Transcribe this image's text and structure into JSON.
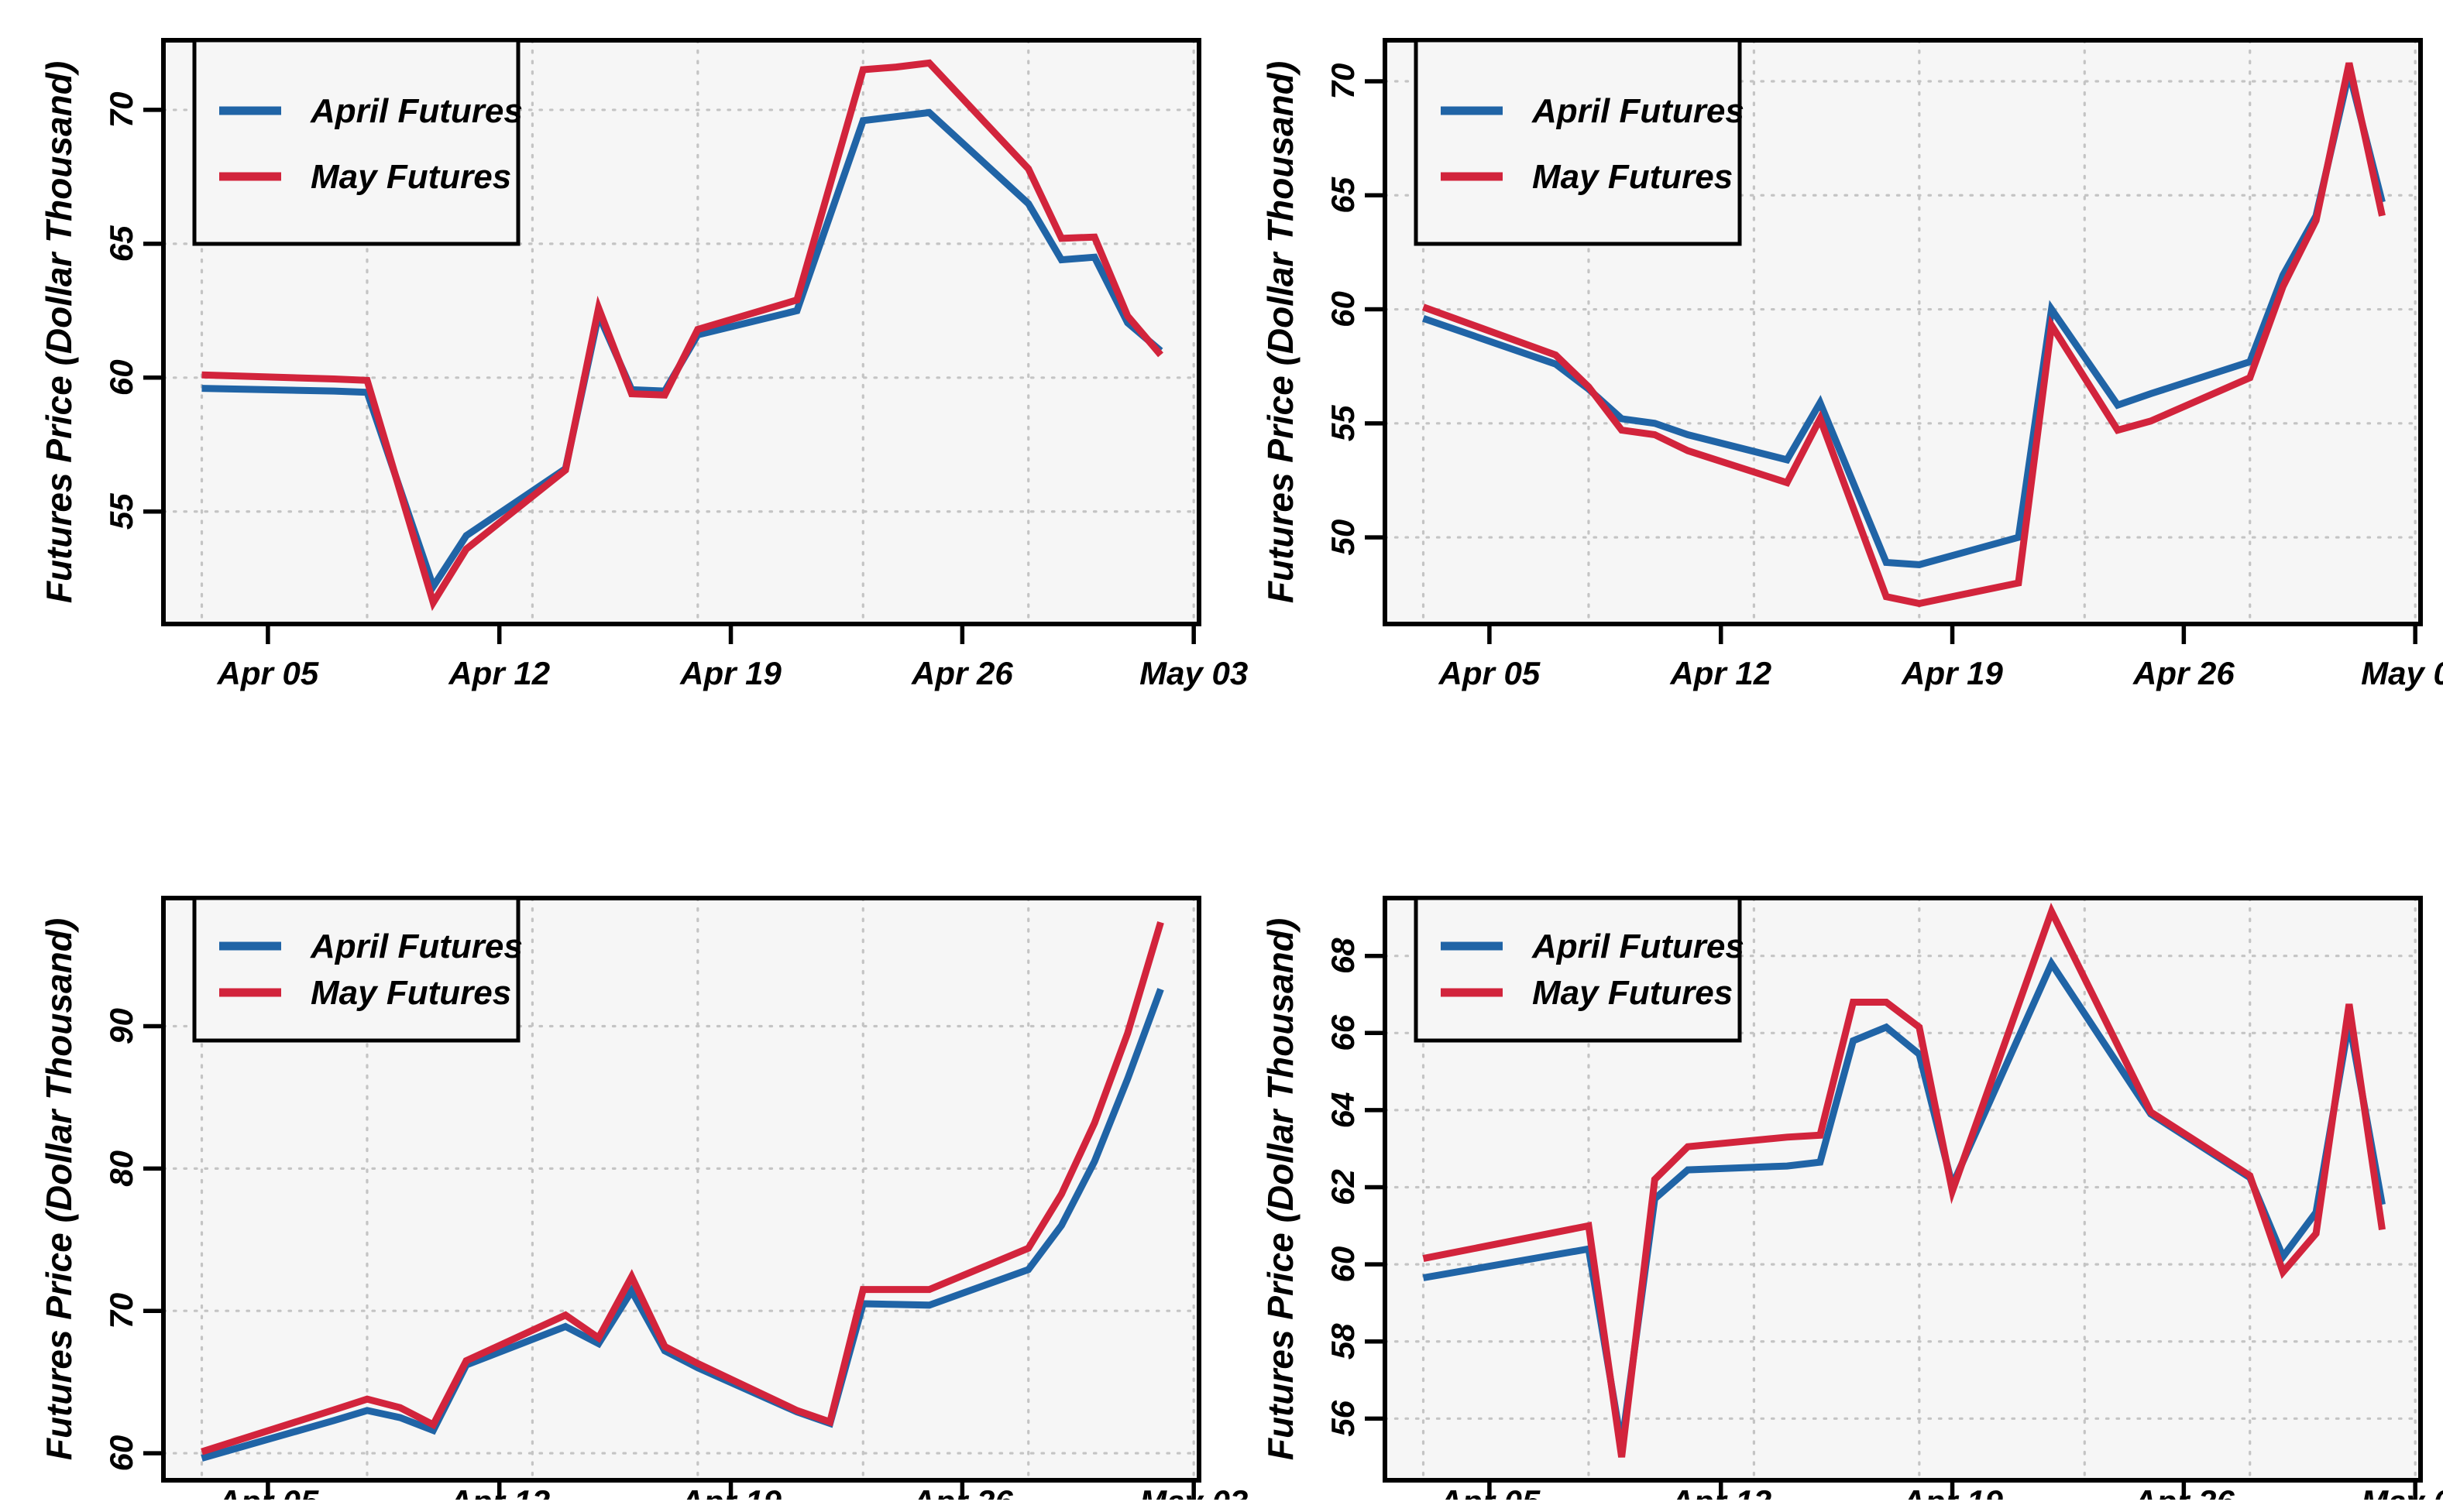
{
  "figure": {
    "ylabel": "Futures Price (Dollar Thousand)",
    "legend": [
      {
        "name": "April Futures",
        "color": "#2064a6"
      },
      {
        "name": "May Futures",
        "color": "#d2243c"
      }
    ],
    "colors": {
      "april_blue": "#2064a6",
      "may_red": "#d2243c",
      "plot_background": "#f6f6f6",
      "grid": "#c4c4c4",
      "axis": "#000000",
      "text": "#000000"
    },
    "x_axis": {
      "tick_labels": [
        "Apr 05",
        "Apr 12",
        "Apr 19",
        "Apr 26",
        "May 03"
      ],
      "tick_days": [
        2,
        9,
        16,
        23,
        30
      ],
      "grid_days": [
        0,
        5,
        10,
        15,
        20,
        25,
        30
      ],
      "domain_days": [
        -1.16,
        30.16
      ],
      "day_zero_date": "Apr 03"
    }
  },
  "chart_data": [
    {
      "id": "top-left",
      "type": "line",
      "title": "",
      "xlabel": "",
      "ylabel": "Futures Price (Dollar Thousand)",
      "ylim": [
        50.8,
        72.6
      ],
      "yticks": [
        55,
        60,
        65,
        70
      ],
      "grid": true,
      "legend_position": "top-left",
      "x_days": [
        0,
        4,
        5,
        7,
        8,
        11,
        12,
        13,
        14,
        15,
        18,
        20,
        21,
        22,
        25,
        26,
        27,
        28,
        29
      ],
      "series": [
        {
          "name": "April Futures",
          "values": [
            59.6,
            59.5,
            59.45,
            52.2,
            54.1,
            56.6,
            62.35,
            59.55,
            59.5,
            61.6,
            62.5,
            69.6,
            69.75,
            69.9,
            66.5,
            64.4,
            64.5,
            62.05,
            61.0
          ]
        },
        {
          "name": "May Futures",
          "values": [
            60.1,
            59.95,
            59.9,
            51.6,
            53.6,
            56.55,
            62.6,
            59.4,
            59.35,
            61.8,
            62.9,
            71.5,
            71.6,
            71.75,
            67.8,
            65.2,
            65.25,
            62.3,
            60.85
          ]
        }
      ]
    },
    {
      "id": "top-right",
      "type": "line",
      "title": "",
      "xlabel": "",
      "ylabel": "Futures Price (Dollar Thousand)",
      "ylim": [
        46.2,
        71.8
      ],
      "yticks": [
        50,
        55,
        60,
        65,
        70
      ],
      "grid": true,
      "legend_position": "top-left",
      "x_days": [
        0,
        4,
        5,
        6,
        7,
        8,
        11,
        12,
        14,
        15,
        18,
        19,
        21,
        22,
        25,
        26,
        27,
        28,
        29
      ],
      "series": [
        {
          "name": "April Futures",
          "values": [
            59.6,
            57.6,
            56.5,
            55.2,
            55.0,
            54.5,
            53.4,
            55.9,
            48.9,
            48.8,
            50.0,
            60.0,
            55.8,
            56.3,
            57.7,
            61.5,
            64.1,
            70.4,
            64.7
          ]
        },
        {
          "name": "May Futures",
          "values": [
            60.1,
            58.0,
            56.6,
            54.7,
            54.5,
            53.8,
            52.4,
            55.2,
            47.4,
            47.1,
            48.0,
            59.3,
            54.7,
            55.1,
            57.0,
            61.0,
            63.9,
            70.8,
            64.1
          ]
        }
      ]
    },
    {
      "id": "bottom-left",
      "type": "line",
      "title": "",
      "xlabel": "",
      "ylabel": "Futures Price (Dollar Thousand)",
      "ylim": [
        58.1,
        99.0
      ],
      "yticks": [
        60,
        70,
        80,
        90
      ],
      "grid": true,
      "legend_position": "top-left",
      "x_days": [
        0,
        4,
        5,
        6,
        7,
        8,
        11,
        12,
        13,
        14,
        15,
        18,
        19,
        20,
        21,
        22,
        25,
        26,
        27,
        28,
        29
      ],
      "series": [
        {
          "name": "April Futures",
          "values": [
            59.65,
            62.3,
            63.0,
            62.5,
            61.6,
            66.2,
            68.9,
            67.7,
            71.4,
            67.2,
            66.0,
            62.9,
            62.1,
            70.5,
            70.45,
            70.4,
            72.9,
            76.0,
            80.5,
            86.3,
            92.6
          ]
        },
        {
          "name": "May Futures",
          "values": [
            60.1,
            63.05,
            63.8,
            63.2,
            62.0,
            66.5,
            69.7,
            68.1,
            72.4,
            67.5,
            66.3,
            63.0,
            62.2,
            71.5,
            71.5,
            71.5,
            74.4,
            78.2,
            83.2,
            89.5,
            97.3
          ]
        }
      ]
    },
    {
      "id": "bottom-right",
      "type": "line",
      "title": "",
      "xlabel": "",
      "ylabel": "Futures Price (Dollar Thousand)",
      "ylim": [
        54.4,
        69.5
      ],
      "yticks": [
        56,
        58,
        60,
        62,
        64,
        66,
        68
      ],
      "grid": true,
      "legend_position": "top-left",
      "x_days": [
        0,
        5,
        6,
        7,
        8,
        11,
        12,
        13,
        14,
        15,
        16,
        19,
        22,
        25,
        26,
        27,
        28,
        29
      ],
      "series": [
        {
          "name": "April Futures",
          "values": [
            59.65,
            60.4,
            55.3,
            61.7,
            62.45,
            62.55,
            62.65,
            65.8,
            66.15,
            65.45,
            62.05,
            67.8,
            63.9,
            62.25,
            60.2,
            61.35,
            66.3,
            61.55
          ]
        },
        {
          "name": "May Futures",
          "values": [
            60.15,
            61.0,
            55.0,
            62.2,
            63.05,
            63.3,
            63.35,
            66.8,
            66.8,
            66.15,
            61.9,
            69.15,
            63.95,
            62.3,
            59.8,
            60.8,
            66.75,
            60.9
          ]
        }
      ]
    }
  ]
}
